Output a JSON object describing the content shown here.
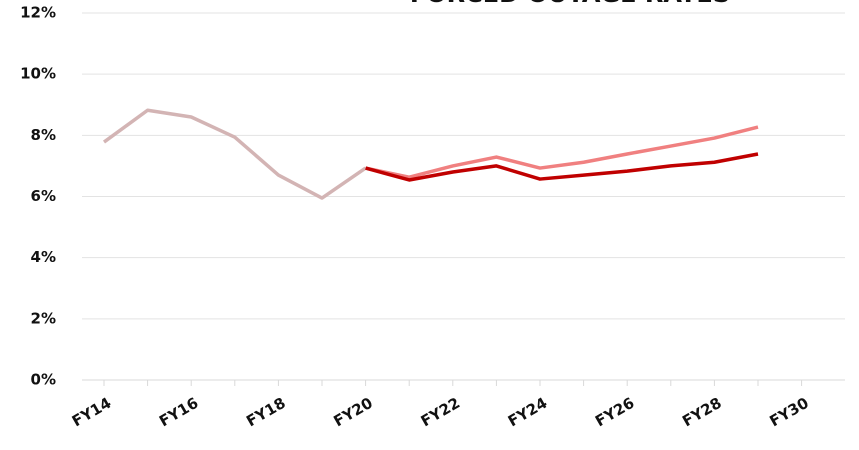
{
  "chart_data": {
    "type": "line",
    "title": "FORCED OUTAGE RATES",
    "categories": [
      "FY14",
      null,
      "FY16",
      null,
      "FY18",
      null,
      "FY20",
      null,
      "FY22",
      null,
      "FY24",
      null,
      "FY26",
      null,
      "FY28",
      null,
      "FY30"
    ],
    "series": [
      {
        "color": "#d3b4b4",
        "values": [
          7.78,
          8.82,
          8.6,
          7.94,
          6.7,
          5.95,
          6.93,
          null,
          null,
          null,
          null,
          null,
          null,
          null,
          null,
          null,
          null
        ]
      },
      {
        "color": "#f08080",
        "values": [
          null,
          null,
          null,
          null,
          null,
          null,
          6.93,
          6.63,
          7.0,
          7.29,
          6.93,
          7.12,
          7.39,
          7.65,
          7.91,
          8.27,
          null
        ]
      },
      {
        "color": "#c00000",
        "values": [
          null,
          null,
          null,
          null,
          null,
          null,
          6.93,
          6.54,
          6.8,
          7.0,
          6.57,
          6.7,
          6.83,
          7.0,
          7.12,
          7.39,
          null
        ]
      }
    ],
    "ylim": [
      0,
      12
    ],
    "yticks": [
      {
        "value": 0,
        "label": "0%"
      },
      {
        "value": 2,
        "label": "2%"
      },
      {
        "value": 4,
        "label": "4%"
      },
      {
        "value": 6,
        "label": "6%"
      },
      {
        "value": 8,
        "label": "8%"
      },
      {
        "value": 10,
        "label": "10%"
      },
      {
        "value": 12,
        "label": "12%"
      }
    ],
    "grid": true
  }
}
